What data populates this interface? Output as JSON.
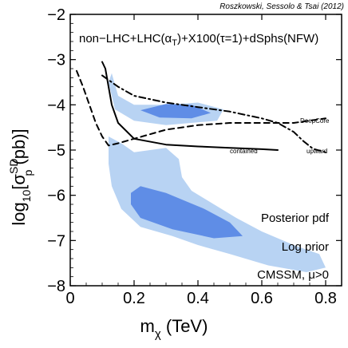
{
  "chart_data": {
    "type": "area",
    "credit": "Roszkowski, Sessolo & Tsai (2012)",
    "header": "non−LHC+LHC(α",
    "header_sub": "T",
    "header_tail": ")+X100(τ=1)+dSphs(NFW)",
    "xlabel": "m",
    "xlabel_sub": "χ",
    "xlabel_tail": " (TeV)",
    "ylabel": "log",
    "ylabel_sub": "10",
    "ylabel_mid": "[σ",
    "ylabel_sup": "SD",
    "ylabel_sub2": "p",
    "ylabel_tail": " (pb)]",
    "xlim": [
      0,
      0.85
    ],
    "ylim": [
      -8,
      -2
    ],
    "x_ticks": [
      0,
      0.2,
      0.4,
      0.6,
      0.8
    ],
    "x_tick_labels": [
      "0",
      "0.2",
      "0.4",
      "0.6",
      "0.8"
    ],
    "y_ticks": [
      -8,
      -7,
      -6,
      -5,
      -4,
      -3,
      -2
    ],
    "y_tick_labels": [
      "−8",
      "−7",
      "−6",
      "−5",
      "−4",
      "−3",
      "−2"
    ],
    "legend_lines": [
      "Posterior pdf",
      "Log prior",
      "CMSSM, μ>0"
    ],
    "colors": {
      "region_95": "#b8d3f3",
      "region_68": "#5f8de6",
      "lines": "#000000"
    },
    "regions": [
      {
        "kind": "95%",
        "points": [
          [
            0.12,
            -3.5
          ],
          [
            0.13,
            -3.3
          ],
          [
            0.15,
            -3.8
          ],
          [
            0.2,
            -4.0
          ],
          [
            0.3,
            -4.0
          ],
          [
            0.4,
            -3.95
          ],
          [
            0.48,
            -4.1
          ],
          [
            0.46,
            -4.35
          ],
          [
            0.3,
            -4.45
          ],
          [
            0.2,
            -4.35
          ],
          [
            0.14,
            -4.1
          ]
        ]
      },
      {
        "kind": "95%",
        "points": [
          [
            0.12,
            -4.7
          ],
          [
            0.16,
            -4.85
          ],
          [
            0.2,
            -5.05
          ],
          [
            0.25,
            -5.0
          ],
          [
            0.3,
            -4.95
          ],
          [
            0.34,
            -5.2
          ],
          [
            0.35,
            -5.6
          ],
          [
            0.38,
            -5.9
          ],
          [
            0.45,
            -6.2
          ],
          [
            0.52,
            -6.5
          ],
          [
            0.6,
            -6.8
          ],
          [
            0.7,
            -7.1
          ],
          [
            0.78,
            -7.3
          ],
          [
            0.8,
            -7.6
          ],
          [
            0.74,
            -7.7
          ],
          [
            0.62,
            -7.55
          ],
          [
            0.5,
            -7.3
          ],
          [
            0.4,
            -7.1
          ],
          [
            0.32,
            -6.9
          ],
          [
            0.22,
            -6.7
          ],
          [
            0.16,
            -6.3
          ],
          [
            0.13,
            -5.8
          ],
          [
            0.12,
            -5.3
          ]
        ]
      },
      {
        "kind": "68%",
        "points": [
          [
            0.22,
            -4.12
          ],
          [
            0.3,
            -3.98
          ],
          [
            0.38,
            -4.0
          ],
          [
            0.44,
            -4.18
          ],
          [
            0.38,
            -4.3
          ],
          [
            0.28,
            -4.28
          ]
        ]
      },
      {
        "kind": "68%",
        "points": [
          [
            0.19,
            -5.95
          ],
          [
            0.22,
            -5.8
          ],
          [
            0.3,
            -5.95
          ],
          [
            0.42,
            -6.3
          ],
          [
            0.5,
            -6.6
          ],
          [
            0.54,
            -6.9
          ],
          [
            0.45,
            -6.95
          ],
          [
            0.32,
            -6.75
          ],
          [
            0.22,
            -6.5
          ],
          [
            0.19,
            -6.2
          ]
        ]
      }
    ],
    "series": [
      {
        "name": "DeepCore",
        "style": "dash-dot",
        "x": [
          0.1,
          0.15,
          0.2,
          0.3,
          0.4,
          0.5,
          0.6,
          0.65,
          0.7,
          0.73,
          0.76,
          0.8
        ],
        "y": [
          -3.35,
          -3.6,
          -3.8,
          -3.95,
          -4.05,
          -4.15,
          -4.3,
          -4.4,
          -4.6,
          -4.8,
          -4.97,
          -5.05
        ]
      },
      {
        "name": "contained",
        "style": "solid",
        "x": [
          0.1,
          0.11,
          0.12,
          0.13,
          0.15,
          0.2,
          0.3,
          0.4,
          0.5,
          0.6,
          0.65
        ],
        "y": [
          -3.05,
          -3.2,
          -3.6,
          -4.0,
          -4.4,
          -4.75,
          -4.88,
          -4.92,
          -4.95,
          -4.98,
          -5.0
        ]
      },
      {
        "name": "upward",
        "style": "dashed",
        "x": [
          0.02,
          0.04,
          0.06,
          0.08,
          0.1,
          0.12,
          0.15,
          0.2,
          0.3,
          0.4,
          0.5,
          0.6,
          0.7,
          0.8
        ],
        "y": [
          -3.25,
          -3.6,
          -4.0,
          -4.4,
          -4.7,
          -4.9,
          -4.85,
          -4.75,
          -4.55,
          -4.45,
          -4.4,
          -4.4,
          -4.4,
          -4.3
        ]
      }
    ],
    "curve_labels": [
      {
        "text": "DeepCore",
        "x": 0.72,
        "y": -4.4
      },
      {
        "text": "contained",
        "x": 0.5,
        "y": -5.07
      },
      {
        "text": "upward",
        "x": 0.74,
        "y": -5.07
      }
    ]
  }
}
